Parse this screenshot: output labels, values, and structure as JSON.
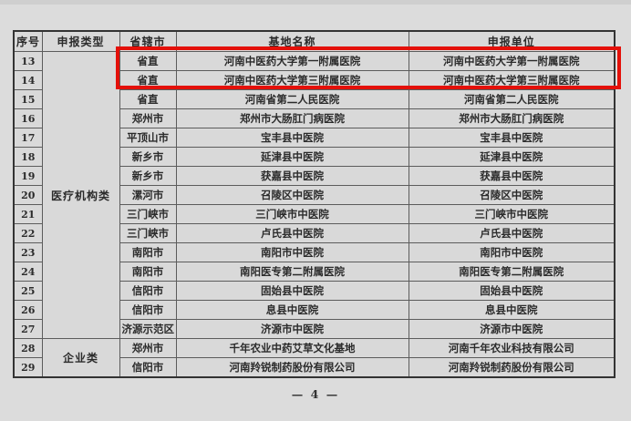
{
  "page": {
    "background": "#dcdcdc",
    "footer": "— 4 —"
  },
  "highlight": {
    "color": "#e41009",
    "covers_rows": [
      "13",
      "14"
    ]
  },
  "table": {
    "headers": [
      "序号",
      "申报类型",
      "省辖市",
      "基地名称",
      "申报单位"
    ],
    "type_groups": [
      {
        "label": "医疗机构类",
        "span": 15,
        "start_index": 0
      },
      {
        "label": "企业类",
        "span": 2,
        "start_index": 15
      }
    ],
    "rows": [
      {
        "no": "13",
        "city": "省直",
        "base": "河南中医药大学第一附属医院",
        "unit": "河南中医药大学第一附属医院",
        "highlighted": true
      },
      {
        "no": "14",
        "city": "省直",
        "base": "河南中医药大学第三附属医院",
        "unit": "河南中医药大学第三附属医院",
        "highlighted": true
      },
      {
        "no": "15",
        "city": "省直",
        "base": "河南省第二人民医院",
        "unit": "河南省第二人民医院",
        "highlighted": false
      },
      {
        "no": "16",
        "city": "郑州市",
        "base": "郑州市大肠肛门病医院",
        "unit": "郑州市大肠肛门病医院",
        "highlighted": false
      },
      {
        "no": "17",
        "city": "平顶山市",
        "base": "宝丰县中医院",
        "unit": "宝丰县中医院",
        "highlighted": false
      },
      {
        "no": "18",
        "city": "新乡市",
        "base": "延津县中医院",
        "unit": "延津县中医院",
        "highlighted": false
      },
      {
        "no": "19",
        "city": "新乡市",
        "base": "获嘉县中医院",
        "unit": "获嘉县中医院",
        "highlighted": false
      },
      {
        "no": "20",
        "city": "漯河市",
        "base": "召陵区中医院",
        "unit": "召陵区中医院",
        "highlighted": false
      },
      {
        "no": "21",
        "city": "三门峡市",
        "base": "三门峡市中医院",
        "unit": "三门峡市中医院",
        "highlighted": false
      },
      {
        "no": "22",
        "city": "三门峡市",
        "base": "卢氏县中医院",
        "unit": "卢氏县中医院",
        "highlighted": false
      },
      {
        "no": "23",
        "city": "南阳市",
        "base": "南阳市中医院",
        "unit": "南阳市中医院",
        "highlighted": false
      },
      {
        "no": "24",
        "city": "南阳市",
        "base": "南阳医专第二附属医院",
        "unit": "南阳医专第二附属医院",
        "highlighted": false
      },
      {
        "no": "25",
        "city": "信阳市",
        "base": "固始县中医院",
        "unit": "固始县中医院",
        "highlighted": false
      },
      {
        "no": "26",
        "city": "信阳市",
        "base": "息县中医院",
        "unit": "息县中医院",
        "highlighted": false
      },
      {
        "no": "27",
        "city": "济源示范区",
        "base": "济源市中医院",
        "unit": "济源市中医院",
        "highlighted": false
      },
      {
        "no": "28",
        "city": "郑州市",
        "base": "千年农业中药艾草文化基地",
        "unit": "河南千年农业科技有限公司",
        "highlighted": false
      },
      {
        "no": "29",
        "city": "信阳市",
        "base": "河南羚锐制药股份有限公司",
        "unit": "河南羚锐制药股份有限公司",
        "highlighted": false
      }
    ]
  }
}
